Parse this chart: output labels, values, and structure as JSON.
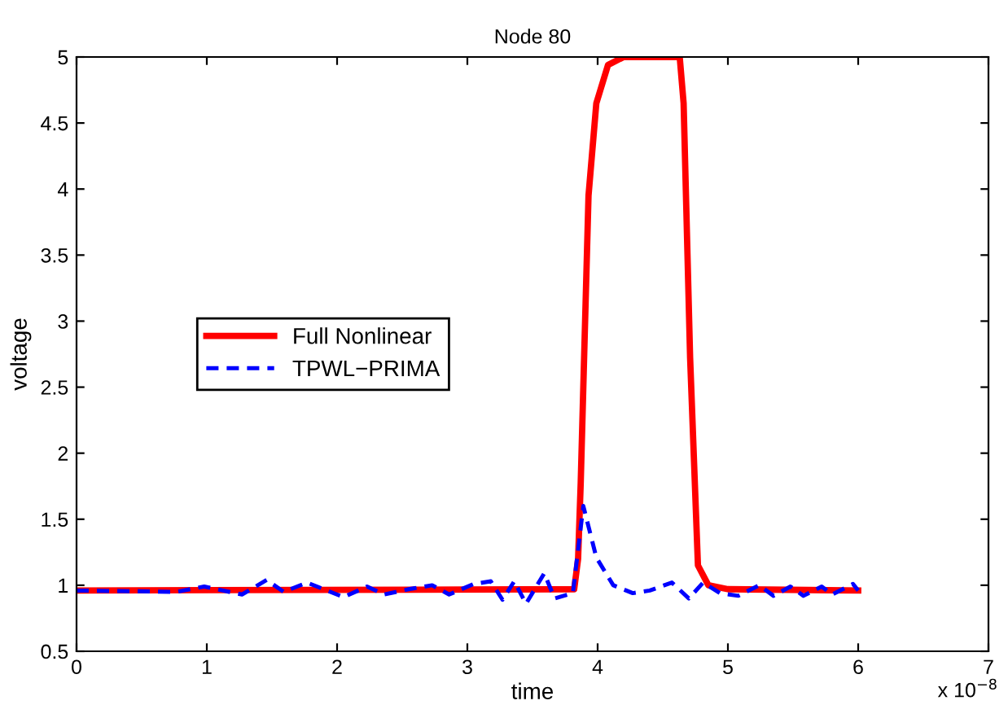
{
  "chart_data": {
    "type": "line",
    "title": "Node 80",
    "xlabel": "time",
    "ylabel": "voltage",
    "annotations": [
      "x 10$^{−8}$"
    ],
    "xlim": [
      0,
      7
    ],
    "xticks": [
      0,
      1,
      2,
      3,
      4,
      5,
      6,
      7
    ],
    "ylim": [
      0.5,
      5
    ],
    "yticks": [
      0.5,
      1,
      1.5,
      2,
      2.5,
      3,
      3.5,
      4,
      4.5,
      5
    ],
    "grid": false,
    "legend": "center left",
    "series": [
      {
        "name": "Full Nonlinear",
        "color": "#ff0000",
        "line_style": "solid",
        "x": [
          0,
          3.82,
          3.85,
          3.87,
          3.93,
          3.99,
          4.08,
          4.2,
          4.63,
          4.66,
          4.71,
          4.77,
          4.85,
          5.0,
          6.0
        ],
        "values": [
          0.96,
          0.97,
          1.2,
          1.77,
          3.95,
          4.65,
          4.94,
          5,
          5,
          4.65,
          2.72,
          1.15,
          1.0,
          0.97,
          0.96
        ]
      },
      {
        "name": "TPWL−PRIMA",
        "color": "#0000ff",
        "line_style": "dashed",
        "x": [
          0,
          0.77,
          0.98,
          1.27,
          1.46,
          1.59,
          1.77,
          2.05,
          2.23,
          2.36,
          2.55,
          2.73,
          2.86,
          3.05,
          3.18,
          3.27,
          3.36,
          3.45,
          3.59,
          3.67,
          3.81,
          3.89,
          3.99,
          4.12,
          4.27,
          4.4,
          4.57,
          4.7,
          4.81,
          4.94,
          5.08,
          5.24,
          5.35,
          5.48,
          5.58,
          5.72,
          5.8,
          5.96,
          6.0
        ],
        "values": [
          0.96,
          0.95,
          0.99,
          0.93,
          1.04,
          0.95,
          1.02,
          0.91,
          0.99,
          0.93,
          0.97,
          1.0,
          0.93,
          1.01,
          1.03,
          0.89,
          1.03,
          0.86,
          1.09,
          0.9,
          0.94,
          1.6,
          1.21,
          1.0,
          0.94,
          0.96,
          1.02,
          0.9,
          1.02,
          0.94,
          0.92,
          1.0,
          0.92,
          0.99,
          0.92,
          0.99,
          0.93,
          1.01,
          0.96
        ]
      }
    ]
  }
}
